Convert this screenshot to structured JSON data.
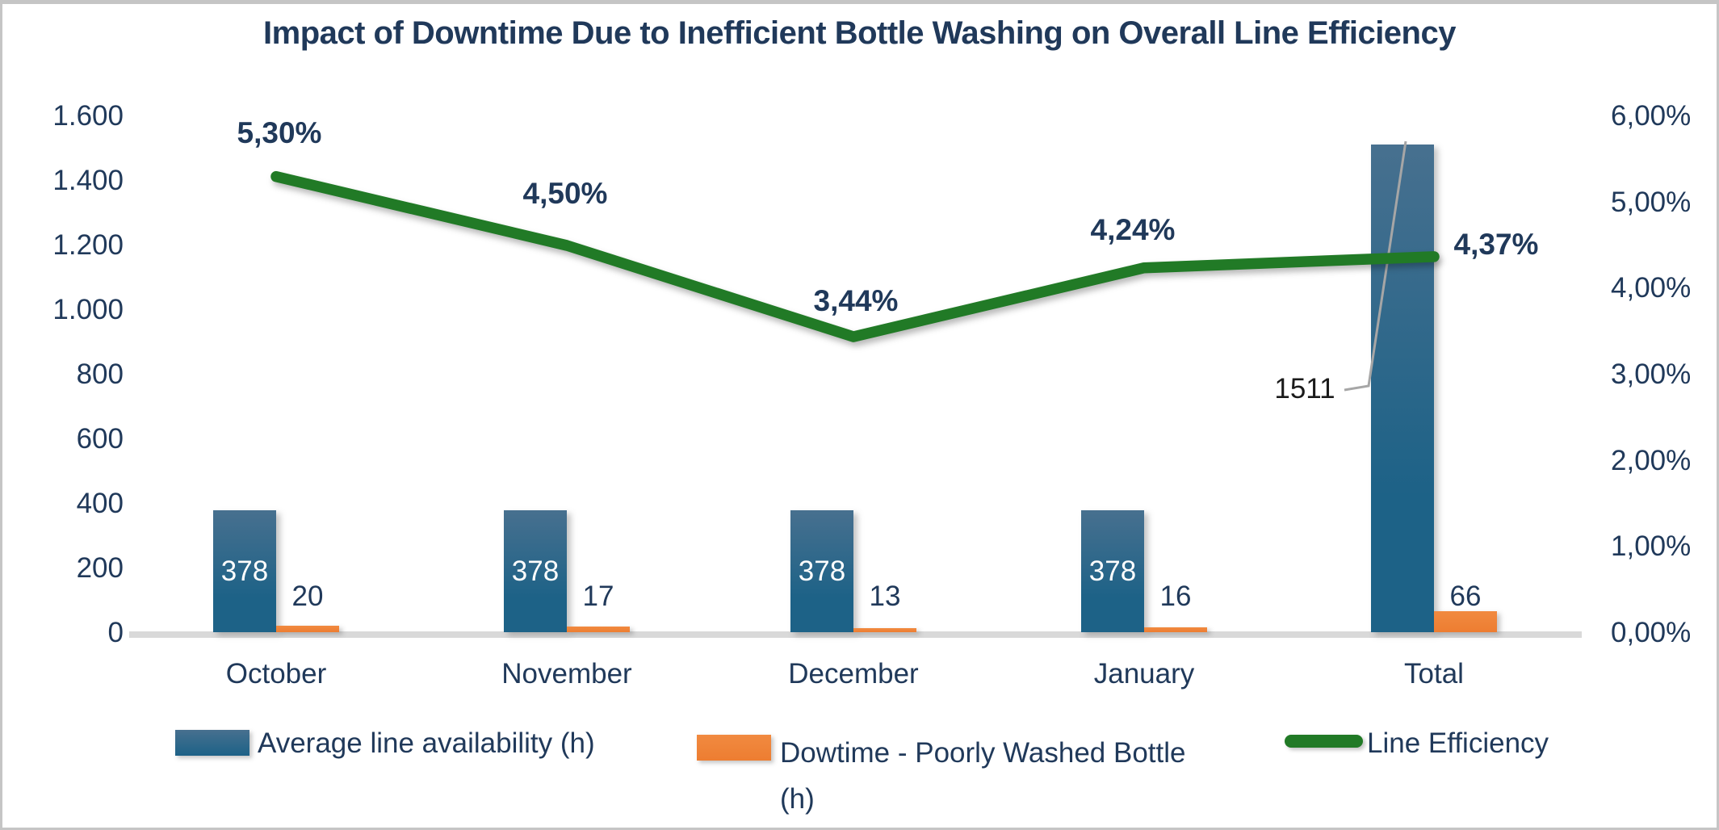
{
  "title": "Impact of Downtime Due to Inefficient Bottle Washing on Overall Line Efficiency",
  "colors": {
    "navy": "#20395a",
    "blue": "#1d6287",
    "blue_top": "#47708f",
    "orange": "#ed7d31",
    "orange_top": "#f18a40",
    "green": "#217a26",
    "axis_gray": "#d9d9d9",
    "leader_gray": "#a6a6a6",
    "border_gray": "#c5c5c5",
    "callout_black": "#1a1a1a"
  },
  "chart_data": {
    "type": "bar",
    "subtype": "combo-bar-line",
    "title": "Impact of Downtime Due to Inefficient Bottle Washing on Overall Line Efficiency",
    "categories": [
      "October",
      "November",
      "December",
      "January",
      "Total"
    ],
    "series": [
      {
        "name": "Average line availability (h)",
        "type": "bar",
        "axis": "left",
        "values": [
          378,
          378,
          378,
          378,
          1511
        ],
        "point_labels": [
          "378",
          "378",
          "378",
          "378",
          null
        ]
      },
      {
        "name": "Dowtime - Poorly Washed Bottle (h)",
        "type": "bar",
        "axis": "left",
        "values": [
          20,
          17,
          13,
          16,
          66
        ],
        "point_labels": [
          "20",
          "17",
          "13",
          "16",
          "66"
        ]
      },
      {
        "name": "Line Efficiency",
        "type": "line",
        "axis": "right",
        "values": [
          5.3,
          4.5,
          3.44,
          4.24,
          4.37
        ],
        "point_labels": [
          "5,30%",
          "4,50%",
          "3,44%",
          "4,24%",
          "4,37%"
        ]
      }
    ],
    "callout": {
      "text": "1511",
      "series": "Average line availability (h)",
      "category": "Total"
    },
    "left_axis": {
      "min": 0,
      "max": 1600,
      "ticks": [
        {
          "label": "0",
          "value": 0
        },
        {
          "label": "200",
          "value": 200
        },
        {
          "label": "400",
          "value": 400
        },
        {
          "label": "600",
          "value": 600
        },
        {
          "label": "800",
          "value": 800
        },
        {
          "label": "1.000",
          "value": 1000
        },
        {
          "label": "1.200",
          "value": 1200
        },
        {
          "label": "1.400",
          "value": 1400
        },
        {
          "label": "1.600",
          "value": 1600
        }
      ]
    },
    "right_axis": {
      "min": 0,
      "max": 6,
      "ticks": [
        {
          "label": "0,00%",
          "value": 0
        },
        {
          "label": "1,00%",
          "value": 1
        },
        {
          "label": "2,00%",
          "value": 2
        },
        {
          "label": "3,00%",
          "value": 3
        },
        {
          "label": "4,00%",
          "value": 4
        },
        {
          "label": "5,00%",
          "value": 5
        },
        {
          "label": "6,00%",
          "value": 6
        }
      ]
    },
    "gridlines": false,
    "legend_position": "bottom"
  },
  "legend": {
    "items": [
      {
        "label": "Average line availability (h)"
      },
      {
        "label": "Dowtime - Poorly Washed Bottle",
        "label2": "(h)"
      },
      {
        "label": "Line Efficiency"
      }
    ]
  }
}
